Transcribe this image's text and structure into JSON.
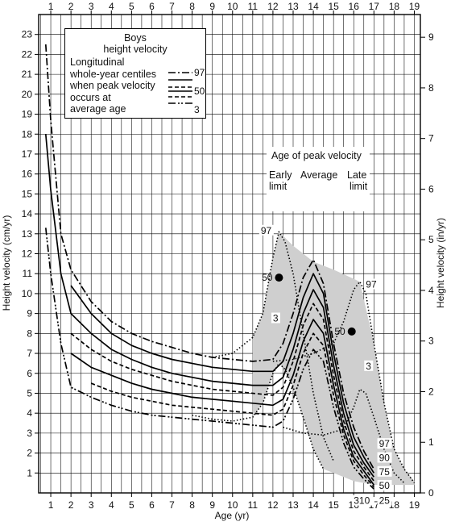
{
  "chart_data": {
    "type": "line",
    "xlabel": "Age (yr)",
    "ylabel": "Height velocity (cm/yr)",
    "ylabel_right": "Height velocity (in/yr)",
    "xlim": [
      0.4,
      19.3
    ],
    "ylim": [
      0,
      24
    ],
    "x_ticks": [
      "1",
      "2",
      "3",
      "4",
      "5",
      "6",
      "7",
      "8",
      "9",
      "10",
      "11",
      "12",
      "13",
      "14",
      "15",
      "16",
      "17",
      "18",
      "19"
    ],
    "y_ticks": [
      "1",
      "2",
      "3",
      "4",
      "5",
      "6",
      "7",
      "8",
      "9",
      "10",
      "11",
      "12",
      "13",
      "14",
      "15",
      "16",
      "17",
      "18",
      "19",
      "20",
      "21",
      "22",
      "23"
    ],
    "y_right_ticks": [
      "0",
      "1",
      "2",
      "3",
      "4",
      "5",
      "6",
      "7",
      "8",
      "9"
    ],
    "grid": true,
    "legend": {
      "title_lines": [
        "Boys",
        "height velocity"
      ],
      "description_lines": [
        "Longitudinal",
        "whole-year centiles",
        "when peak velocity",
        "occurs at",
        "average age"
      ],
      "entries": [
        {
          "label": "97",
          "style": "dash-dot"
        },
        {
          "label": "50",
          "style": "dashed"
        },
        {
          "label": "3",
          "style": "dash-dot-dot"
        }
      ]
    },
    "peak_box": {
      "title": "Age of peak velocity",
      "early": [
        "Early",
        "limit"
      ],
      "average": "Average",
      "late": [
        "Late",
        "limit"
      ]
    },
    "series": [
      {
        "label": "97",
        "style": "dash-dot",
        "points": [
          [
            0.75,
            22.5
          ],
          [
            1,
            18.7
          ],
          [
            1.5,
            13
          ],
          [
            2,
            11.2
          ],
          [
            3,
            9.6
          ],
          [
            4,
            8.6
          ],
          [
            5,
            8.0
          ],
          [
            6,
            7.6
          ],
          [
            7,
            7.3
          ],
          [
            8,
            7.0
          ],
          [
            9,
            6.8
          ],
          [
            10,
            6.7
          ],
          [
            11,
            6.6
          ],
          [
            12,
            6.7
          ],
          [
            12.5,
            7.5
          ],
          [
            13,
            9.0
          ],
          [
            13.5,
            10.8
          ],
          [
            14,
            11.7
          ],
          [
            14.5,
            10.5
          ],
          [
            15,
            7.5
          ],
          [
            15.5,
            5.0
          ],
          [
            16,
            3.3
          ],
          [
            16.5,
            2.1
          ],
          [
            17,
            1.2
          ]
        ]
      },
      {
        "label": "90",
        "style": "solid",
        "points": [
          [
            2,
            10.4
          ],
          [
            3,
            9.0
          ],
          [
            4,
            8.0
          ],
          [
            5,
            7.4
          ],
          [
            6,
            7.0
          ],
          [
            7,
            6.7
          ],
          [
            8,
            6.5
          ],
          [
            9,
            6.3
          ],
          [
            10,
            6.2
          ],
          [
            11,
            6.1
          ],
          [
            12,
            6.1
          ],
          [
            12.5,
            6.6
          ],
          [
            13,
            8.0
          ],
          [
            13.5,
            9.8
          ],
          [
            14,
            11.0
          ],
          [
            14.5,
            10.0
          ],
          [
            15,
            7.0
          ],
          [
            15.5,
            4.5
          ],
          [
            16,
            2.8
          ],
          [
            16.5,
            1.8
          ],
          [
            17,
            1.0
          ]
        ]
      },
      {
        "label": "75",
        "style": "solid",
        "points": [
          [
            0.75,
            18.0
          ],
          [
            1,
            15.2
          ],
          [
            1.5,
            11.0
          ],
          [
            2,
            9.0
          ],
          [
            3,
            8.0
          ],
          [
            4,
            7.2
          ],
          [
            5,
            6.7
          ],
          [
            6,
            6.3
          ],
          [
            7,
            6.0
          ],
          [
            8,
            5.8
          ],
          [
            9,
            5.6
          ],
          [
            10,
            5.5
          ],
          [
            11,
            5.4
          ],
          [
            12,
            5.4
          ],
          [
            12.5,
            5.8
          ],
          [
            13,
            7.2
          ],
          [
            13.5,
            9.0
          ],
          [
            14,
            10.2
          ],
          [
            14.5,
            9.3
          ],
          [
            15,
            6.4
          ],
          [
            15.5,
            4.0
          ],
          [
            16,
            2.4
          ],
          [
            16.5,
            1.5
          ],
          [
            17,
            0.8
          ]
        ]
      },
      {
        "label": "50",
        "style": "dashed",
        "points": [
          [
            2,
            8.0
          ],
          [
            3,
            7.2
          ],
          [
            4,
            6.6
          ],
          [
            5,
            6.2
          ],
          [
            6,
            5.9
          ],
          [
            7,
            5.6
          ],
          [
            8,
            5.4
          ],
          [
            9,
            5.2
          ],
          [
            10,
            5.1
          ],
          [
            11,
            5.0
          ],
          [
            12,
            4.9
          ],
          [
            12.5,
            5.3
          ],
          [
            13,
            6.6
          ],
          [
            13.5,
            8.4
          ],
          [
            14,
            9.5
          ],
          [
            14.5,
            8.7
          ],
          [
            15,
            5.9
          ],
          [
            15.5,
            3.6
          ],
          [
            16,
            2.1
          ],
          [
            16.5,
            1.3
          ],
          [
            17,
            0.6
          ]
        ]
      },
      {
        "label": "25",
        "style": "solid",
        "points": [
          [
            2,
            7.0
          ],
          [
            3,
            6.3
          ],
          [
            4,
            5.9
          ],
          [
            5,
            5.5
          ],
          [
            6,
            5.2
          ],
          [
            7,
            5.0
          ],
          [
            8,
            4.8
          ],
          [
            9,
            4.7
          ],
          [
            10,
            4.6
          ],
          [
            11,
            4.5
          ],
          [
            12,
            4.4
          ],
          [
            12.5,
            4.7
          ],
          [
            13,
            5.9
          ],
          [
            13.5,
            7.6
          ],
          [
            14,
            8.7
          ],
          [
            14.5,
            8.0
          ],
          [
            15,
            5.4
          ],
          [
            15.5,
            3.2
          ],
          [
            16,
            1.8
          ],
          [
            16.5,
            1.1
          ],
          [
            17,
            0.4
          ]
        ]
      },
      {
        "label": "10",
        "style": "dashed",
        "points": [
          [
            3,
            5.5
          ],
          [
            4,
            5.1
          ],
          [
            5,
            4.8
          ],
          [
            6,
            4.6
          ],
          [
            7,
            4.4
          ],
          [
            8,
            4.3
          ],
          [
            9,
            4.2
          ],
          [
            10,
            4.1
          ],
          [
            11,
            4.0
          ],
          [
            12,
            3.9
          ],
          [
            12.5,
            4.2
          ],
          [
            13,
            5.4
          ],
          [
            13.5,
            7.0
          ],
          [
            14,
            8.0
          ],
          [
            14.5,
            7.4
          ],
          [
            15,
            4.9
          ],
          [
            15.5,
            2.9
          ],
          [
            16,
            1.6
          ],
          [
            16.5,
            0.9
          ],
          [
            17,
            0.3
          ]
        ]
      },
      {
        "label": "3",
        "style": "dash-dot-dot",
        "points": [
          [
            0.75,
            13.3
          ],
          [
            1,
            11.0
          ],
          [
            1.5,
            7.5
          ],
          [
            2,
            5.3
          ],
          [
            3,
            4.8
          ],
          [
            4,
            4.4
          ],
          [
            5,
            4.1
          ],
          [
            6,
            3.9
          ],
          [
            7,
            3.8
          ],
          [
            8,
            3.7
          ],
          [
            9,
            3.6
          ],
          [
            10,
            3.5
          ],
          [
            11,
            3.4
          ],
          [
            12,
            3.3
          ],
          [
            12.5,
            3.6
          ],
          [
            13,
            4.7
          ],
          [
            13.5,
            6.2
          ],
          [
            14,
            7.2
          ],
          [
            14.5,
            6.6
          ],
          [
            15,
            4.3
          ],
          [
            15.5,
            2.5
          ],
          [
            16,
            1.3
          ],
          [
            16.5,
            0.7
          ],
          [
            17,
            0.2
          ]
        ]
      },
      {
        "label": "early-97",
        "style": "dotted",
        "points": [
          [
            9,
            6.8
          ],
          [
            10,
            7.0
          ],
          [
            11,
            7.8
          ],
          [
            11.5,
            9.0
          ],
          [
            12,
            11.8
          ],
          [
            12.3,
            13.1
          ],
          [
            12.6,
            12.6
          ],
          [
            13,
            11.0
          ],
          [
            13.5,
            8.0
          ],
          [
            14,
            5.0
          ],
          [
            14.5,
            2.8
          ],
          [
            15,
            1.6
          ]
        ]
      },
      {
        "label": "early-3",
        "style": "dotted",
        "points": [
          [
            8,
            3.9
          ],
          [
            9,
            3.7
          ],
          [
            10,
            3.6
          ],
          [
            11,
            3.8
          ],
          [
            11.5,
            4.5
          ],
          [
            12,
            6.0
          ],
          [
            12.3,
            6.5
          ],
          [
            12.6,
            6.2
          ],
          [
            13,
            5.3
          ],
          [
            13.5,
            3.8
          ],
          [
            14,
            2.2
          ],
          [
            14.5,
            1.2
          ]
        ]
      },
      {
        "label": "late-97",
        "style": "dotted",
        "points": [
          [
            12,
            6.6
          ],
          [
            13,
            6.7
          ],
          [
            14,
            7.0
          ],
          [
            15,
            7.5
          ],
          [
            15.5,
            8.6
          ],
          [
            16,
            10.2
          ],
          [
            16.3,
            10.6
          ],
          [
            16.6,
            10.0
          ],
          [
            17,
            7.5
          ],
          [
            17.5,
            4.5
          ],
          [
            18,
            2.2
          ],
          [
            18.5,
            1.2
          ],
          [
            19,
            0.5
          ]
        ]
      },
      {
        "label": "late-3",
        "style": "dotted",
        "points": [
          [
            12.5,
            3.3
          ],
          [
            13.5,
            3.0
          ],
          [
            14.5,
            2.9
          ],
          [
            15.5,
            3.2
          ],
          [
            16,
            4.3
          ],
          [
            16.3,
            5.2
          ],
          [
            16.6,
            5.0
          ],
          [
            17,
            3.8
          ],
          [
            17.5,
            2.2
          ],
          [
            18,
            1.0
          ],
          [
            18.5,
            0.5
          ]
        ]
      }
    ],
    "shaded_region": [
      [
        12.3,
        13.1
      ],
      [
        13.0,
        12.4
      ],
      [
        14.0,
        11.6
      ],
      [
        15.0,
        11.2
      ],
      [
        16.3,
        10.6
      ],
      [
        17,
        7.5
      ],
      [
        17.5,
        4.5
      ],
      [
        18,
        2.2
      ],
      [
        18.5,
        1.2
      ],
      [
        19,
        0.6
      ],
      [
        19,
        0.4
      ],
      [
        17,
        0.4
      ],
      [
        16,
        0.6
      ],
      [
        15,
        1.0
      ],
      [
        14.5,
        1.2
      ],
      [
        14,
        2.2
      ],
      [
        13.5,
        3.8
      ],
      [
        13,
        5.3
      ],
      [
        12.6,
        6.2
      ],
      [
        12.3,
        6.5
      ],
      [
        12,
        6.0
      ],
      [
        11.5,
        4.5
      ],
      [
        11,
        3.8
      ],
      [
        11,
        7.8
      ],
      [
        11.5,
        9.0
      ],
      [
        12,
        11.8
      ]
    ],
    "markers": [
      {
        "x": 12.3,
        "y": 10.8,
        "label": "50"
      },
      {
        "x": 15.9,
        "y": 8.1,
        "label": "50"
      }
    ],
    "curve_labels": [
      {
        "x": 11.4,
        "y": 13.0,
        "text": "97"
      },
      {
        "x": 12.0,
        "y": 8.6,
        "text": "3"
      },
      {
        "x": 16.6,
        "y": 10.3,
        "text": "97"
      },
      {
        "x": 16.6,
        "y": 6.2,
        "text": "3"
      },
      {
        "x": 17.25,
        "y": 2.3,
        "text": "97"
      },
      {
        "x": 17.25,
        "y": 1.6,
        "text": "90"
      },
      {
        "x": 17.25,
        "y": 0.9,
        "text": "75"
      },
      {
        "x": 17.25,
        "y": 0.2,
        "text": "50"
      },
      {
        "x": 17.25,
        "y": -0.55,
        "text": "25"
      },
      {
        "x": 16.0,
        "y": -0.55,
        "text": "310"
      }
    ]
  }
}
